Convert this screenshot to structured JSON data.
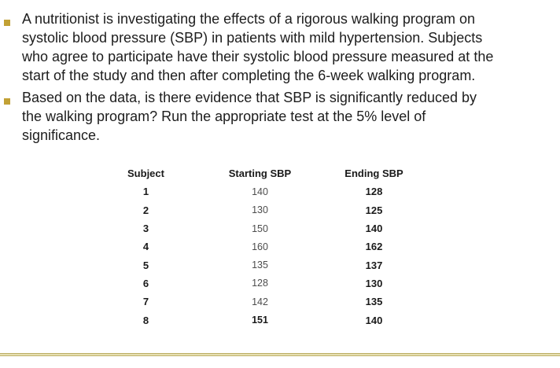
{
  "slide": {
    "bullets": [
      "A nutritionist is investigating the effects of a rigorous walking program on\nsystolic blood pressure (SBP) in patients with mild hypertension. Subjects\nwho agree to participate have their systolic blood pressure measured at the\nstart of the study and then after completing the 6-week walking program.",
      "Based on the data, is there evidence that SBP is significantly reduced by\nthe walking program? Run the appropriate test at the 5% level of\nsignificance."
    ]
  },
  "table": {
    "headers": [
      "Subject",
      "Starting SBP",
      "Ending SBP"
    ],
    "rows": [
      [
        "1",
        "140",
        "128"
      ],
      [
        "2",
        "130",
        "125"
      ],
      [
        "3",
        "150",
        "140"
      ],
      [
        "4",
        "160",
        "162"
      ],
      [
        "5",
        "135",
        "137"
      ],
      [
        "6",
        "128",
        "130"
      ],
      [
        "7",
        "142",
        "135"
      ],
      [
        "8",
        "151",
        "140"
      ]
    ]
  },
  "colors": {
    "bullet": "#c2a135",
    "divider_dark": "#a99740",
    "divider_light": "#efe9c3",
    "text": "#1d1d1d",
    "table_text": "#1a1a1a",
    "table_muted": "#4d4d4d",
    "background": "#ffffff"
  }
}
